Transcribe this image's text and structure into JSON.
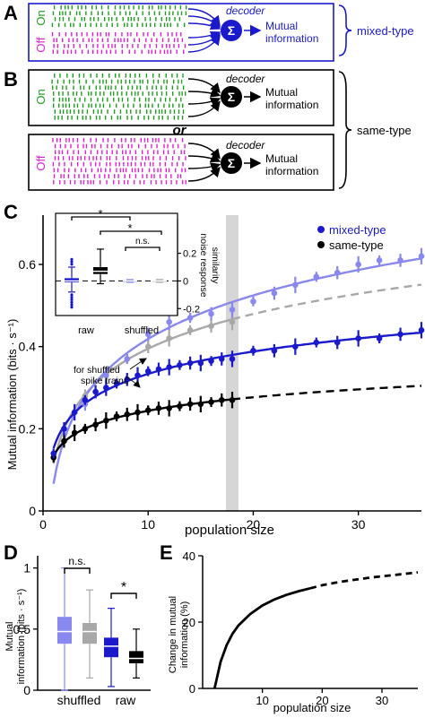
{
  "colors": {
    "on": "#1e9e1e",
    "off": "#e020d0",
    "mixed": "#1a1acc",
    "mixed_light": "#8888ee",
    "same": "#000000",
    "shuffled_gray": "#a8a8a8",
    "highlight": "#d6d6d6"
  },
  "panelA": {
    "letter": "A",
    "on_label": "On",
    "off_label": "Off",
    "decoder_label": "decoder",
    "sigma": "Σ",
    "mi_line1": "Mutual",
    "mi_line2": "information",
    "group_label": "mixed-type"
  },
  "panelB": {
    "letter": "B",
    "on_label": "On",
    "off_label": "Off",
    "or_label": "or",
    "decoder_label": "decoder",
    "sigma": "Σ",
    "mi_line1": "Mutual",
    "mi_line2": "information",
    "group_label": "same-type"
  },
  "panelC": {
    "letter": "C",
    "xlabel": "population size",
    "ylabel": "Mutual information (bits · s⁻¹)",
    "legend": [
      "mixed-type",
      "same-type"
    ],
    "annotation_line1": "for shuffled",
    "annotation_line2": "spike trains",
    "xticks": [
      "0",
      "10",
      "20",
      "30"
    ],
    "yticks": [
      "0",
      "0.2",
      "0.4",
      "0.6"
    ],
    "inset": {
      "ylabel_line1": "noise response",
      "ylabel_line2": "similarity",
      "xlabels": [
        "raw",
        "shuffled"
      ],
      "yticks": [
        "-0.2",
        "0",
        "0.2"
      ],
      "sig_star": "*",
      "ns": "n.s."
    }
  },
  "panelD": {
    "letter": "D",
    "ylabel_line1": "Mutual",
    "ylabel_line2": "information (bits · s⁻¹)",
    "xlabels": [
      "shuffled",
      "raw"
    ],
    "yticks": [
      "0",
      "0.5",
      "1"
    ],
    "ns": "n.s.",
    "sig_star": "*"
  },
  "panelE": {
    "letter": "E",
    "xlabel": "population size",
    "ylabel_line1": "Change in mutual",
    "ylabel_line2": "information (%)",
    "xticks": [
      "10",
      "20",
      "30"
    ],
    "yticks": [
      "0",
      "20",
      "40"
    ]
  },
  "chart_data": [
    {
      "type": "scatter",
      "panel": "C",
      "xlabel": "population size",
      "ylabel": "Mutual information (bits · s⁻¹)",
      "xlim": [
        0,
        36
      ],
      "ylim": [
        0,
        0.72
      ],
      "highlight_x": 18,
      "series": [
        {
          "name": "mixed-type",
          "variant": "raw",
          "x": [
            1,
            2,
            3,
            4,
            5,
            6,
            7,
            8,
            9,
            10,
            11,
            12,
            13,
            14,
            15,
            16,
            17,
            18,
            20,
            22,
            24,
            26,
            28,
            30,
            32,
            34,
            36
          ],
          "y": [
            0.14,
            0.2,
            0.24,
            0.27,
            0.29,
            0.3,
            0.31,
            0.32,
            0.33,
            0.34,
            0.345,
            0.35,
            0.355,
            0.36,
            0.36,
            0.365,
            0.37,
            0.37,
            0.39,
            0.39,
            0.4,
            0.41,
            0.41,
            0.42,
            0.42,
            0.43,
            0.44
          ]
        },
        {
          "name": "same-type",
          "variant": "raw",
          "x": [
            1,
            2,
            3,
            4,
            5,
            6,
            7,
            8,
            9,
            10,
            11,
            12,
            13,
            14,
            15,
            16,
            17,
            18
          ],
          "y": [
            0.13,
            0.17,
            0.19,
            0.2,
            0.21,
            0.22,
            0.23,
            0.235,
            0.24,
            0.245,
            0.25,
            0.25,
            0.255,
            0.26,
            0.26,
            0.265,
            0.27,
            0.27
          ]
        },
        {
          "name": "mixed-type",
          "variant": "shuffled",
          "x": [
            2,
            4,
            6,
            8,
            10,
            12,
            14,
            16,
            18,
            20,
            22,
            24,
            26,
            28,
            30,
            32,
            34,
            36
          ],
          "y": [
            0.2,
            0.26,
            0.33,
            0.37,
            0.43,
            0.46,
            0.47,
            0.48,
            0.49,
            0.51,
            0.53,
            0.55,
            0.57,
            0.58,
            0.6,
            0.61,
            0.61,
            0.62
          ]
        },
        {
          "name": "same-type",
          "variant": "shuffled",
          "x": [
            2,
            4,
            6,
            8,
            10,
            12,
            14,
            16,
            18
          ],
          "y": [
            0.2,
            0.28,
            0.33,
            0.37,
            0.4,
            0.42,
            0.44,
            0.45,
            0.46
          ]
        }
      ]
    },
    {
      "type": "box",
      "panel": "C-inset",
      "ylabel": "noise response similarity",
      "categories": [
        "raw",
        "shuffled"
      ],
      "ylim": [
        -0.25,
        0.45
      ],
      "series": [
        {
          "name": "mixed-type",
          "raw": {
            "q1": -0.01,
            "median": 0.0,
            "q3": 0.02,
            "lo": -0.08,
            "hi": 0.1
          },
          "shuffled": {
            "q1": -0.005,
            "median": 0.0,
            "q3": 0.005,
            "lo": -0.01,
            "hi": 0.01
          }
        },
        {
          "name": "same-type",
          "raw": {
            "q1": 0.05,
            "median": 0.07,
            "q3": 0.1,
            "lo": -0.02,
            "hi": 0.23
          },
          "shuffled": {
            "q1": -0.005,
            "median": 0.0,
            "q3": 0.005,
            "lo": -0.01,
            "hi": 0.01
          }
        }
      ]
    },
    {
      "type": "box",
      "panel": "D",
      "ylabel": "Mutual information (bits · s⁻¹)",
      "categories": [
        "shuffled",
        "raw"
      ],
      "ylim": [
        0,
        1.1
      ],
      "series": [
        {
          "name": "mixed-type",
          "shuffled": {
            "q1": 0.38,
            "median": 0.48,
            "q3": 0.6,
            "lo": 0.0,
            "hi": 1.0
          },
          "raw": {
            "q1": 0.27,
            "median": 0.36,
            "q3": 0.43,
            "lo": 0.03,
            "hi": 0.67
          }
        },
        {
          "name": "same-type",
          "shuffled": {
            "q1": 0.38,
            "median": 0.48,
            "q3": 0.55,
            "lo": 0.1,
            "hi": 0.82
          },
          "raw": {
            "q1": 0.22,
            "median": 0.26,
            "q3": 0.32,
            "lo": 0.1,
            "hi": 0.5
          }
        }
      ]
    },
    {
      "type": "line",
      "panel": "E",
      "xlabel": "population size",
      "ylabel": "Change in mutual information (%)",
      "xlim": [
        0,
        36
      ],
      "ylim": [
        0,
        40
      ],
      "series": [
        {
          "name": "solid",
          "x": [
            2,
            3,
            4,
            5,
            6,
            8,
            10,
            12,
            14,
            16,
            18
          ],
          "y": [
            0,
            8,
            13,
            16.5,
            19,
            22.5,
            25,
            26.8,
            28.2,
            29.3,
            30.2
          ]
        },
        {
          "name": "dashed",
          "x": [
            18,
            20,
            22,
            24,
            26,
            28,
            30,
            32,
            34,
            36
          ],
          "y": [
            30.2,
            31.1,
            31.8,
            32.4,
            32.9,
            33.4,
            33.8,
            34.2,
            34.6,
            35
          ]
        }
      ]
    }
  ]
}
